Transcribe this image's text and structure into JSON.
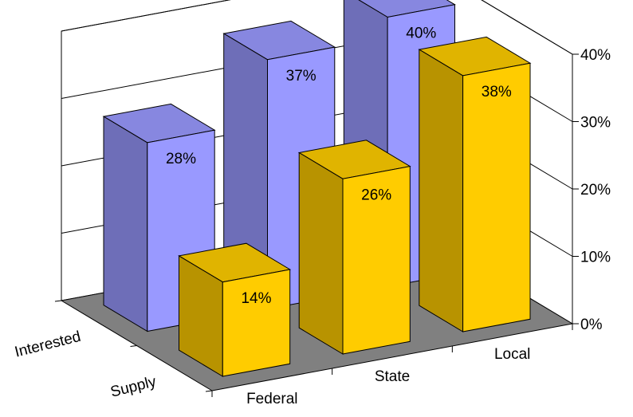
{
  "chart_data": {
    "type": "bar",
    "categories": [
      "Federal",
      "State",
      "Local"
    ],
    "series": [
      {
        "name": "Interested",
        "values": [
          28,
          37,
          40
        ],
        "color": "#9999ff"
      },
      {
        "name": "Supply",
        "values": [
          14,
          26,
          38
        ],
        "color": "#ffcc00"
      }
    ],
    "yticks": [
      "0%",
      "10%",
      "20%",
      "30%",
      "40%"
    ],
    "ylim": [
      0,
      40
    ],
    "grid": true,
    "floor_color": "#808080"
  }
}
